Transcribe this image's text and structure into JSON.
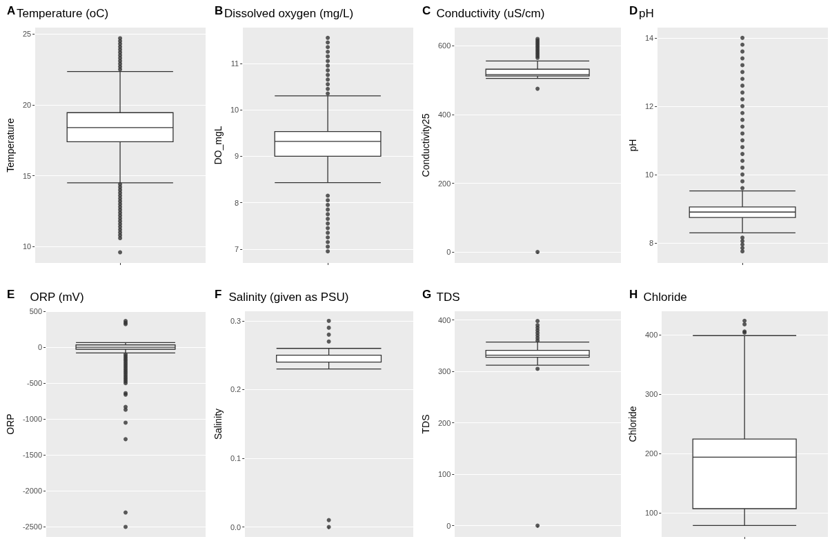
{
  "chart_data": [
    {
      "type": "box",
      "title": "Temperature (oC)",
      "ylabel": "Temperature",
      "annotations": [
        "A"
      ],
      "categories": [
        null
      ],
      "ylim": [
        8.85,
        25.45
      ],
      "yticks": [
        10,
        15,
        20,
        25
      ],
      "grid": true,
      "boxes": [
        {
          "low": 14.5,
          "q1": 17.4,
          "median": 18.4,
          "q3": 19.45,
          "high": 22.35,
          "outliers": [
            22.5,
            22.7,
            22.9,
            23.1,
            23.3,
            23.5,
            23.7,
            23.9,
            24.1,
            24.3,
            24.5,
            24.7,
            14.4,
            14.2,
            14.0,
            13.8,
            13.6,
            13.4,
            13.2,
            13.0,
            12.8,
            12.6,
            12.4,
            12.2,
            12.0,
            11.8,
            11.6,
            11.4,
            11.2,
            11.0,
            10.8,
            10.6,
            9.6
          ]
        }
      ]
    },
    {
      "type": "box",
      "title": "Dissolved oxygen (mg/L)",
      "ylabel": "DO_mgL",
      "annotations": [
        "B"
      ],
      "categories": [
        null
      ],
      "ylim": [
        6.7,
        11.77
      ],
      "yticks": [
        7,
        8,
        9,
        10,
        11
      ],
      "grid": true,
      "boxes": [
        {
          "low": 8.43,
          "q1": 9.0,
          "median": 9.32,
          "q3": 9.53,
          "high": 10.3,
          "outliers": [
            10.35,
            10.45,
            10.55,
            10.65,
            10.75,
            10.85,
            10.95,
            11.05,
            11.15,
            11.25,
            11.35,
            11.45,
            11.55,
            8.15,
            8.05,
            7.95,
            7.85,
            7.75,
            7.65,
            7.55,
            7.45,
            7.35,
            7.25,
            7.15,
            7.05,
            6.95
          ]
        }
      ]
    },
    {
      "type": "box",
      "title": "Conductivity (uS/cm)",
      "ylabel": "Conductivity25",
      "annotations": [
        "C"
      ],
      "categories": [
        null
      ],
      "ylim": [
        -32,
        653
      ],
      "yticks": [
        0,
        200,
        400,
        600
      ],
      "grid": true,
      "boxes": [
        {
          "low": 505,
          "q1": 512,
          "median": 516,
          "q3": 532,
          "high": 556,
          "outliers": [
            565,
            570,
            575,
            580,
            585,
            590,
            595,
            600,
            605,
            610,
            615,
            620,
            475,
            0
          ]
        }
      ]
    },
    {
      "type": "box",
      "title": "pH",
      "ylabel": "pH",
      "annotations": [
        "D"
      ],
      "categories": [
        null
      ],
      "ylim": [
        7.41,
        14.3
      ],
      "yticks": [
        8,
        10,
        12,
        14
      ],
      "grid": true,
      "boxes": [
        {
          "low": 8.29,
          "q1": 8.74,
          "median": 8.9,
          "q3": 9.05,
          "high": 9.52,
          "outliers": [
            9.6,
            9.8,
            10.0,
            10.2,
            10.4,
            10.6,
            10.8,
            11.0,
            11.2,
            11.4,
            11.6,
            11.8,
            12.0,
            12.2,
            12.4,
            12.6,
            12.8,
            13.0,
            13.2,
            13.4,
            13.6,
            13.8,
            14.0,
            8.15,
            8.05,
            7.95,
            7.85,
            7.75
          ]
        }
      ]
    },
    {
      "type": "box",
      "title": "ORP (mV)",
      "ylabel": "ORP",
      "annotations": [
        "E"
      ],
      "categories": [
        null
      ],
      "ylim": [
        -2640,
        500
      ],
      "yticks": [
        -2500,
        -2000,
        -1500,
        -1000,
        -500,
        0,
        500
      ],
      "grid": true,
      "boxes": [
        {
          "low": -80,
          "q1": -28,
          "median": 0,
          "q3": 32,
          "high": 64,
          "outliers": [
            365,
            340,
            320,
            -100,
            -125,
            -150,
            -175,
            -200,
            -225,
            -250,
            -275,
            -300,
            -325,
            -350,
            -375,
            -400,
            -425,
            -450,
            -475,
            -500,
            -640,
            -660,
            -830,
            -870,
            -1050,
            -1280,
            -2300,
            -2500
          ]
        }
      ]
    },
    {
      "type": "box",
      "title": "Salinity (given as PSU)",
      "ylabel": "Salinity",
      "annotations": [
        "F"
      ],
      "categories": [
        null
      ],
      "ylim": [
        -0.0145,
        0.314
      ],
      "yticks": [
        {
          "value": 0,
          "label": "0.0"
        },
        0.1,
        0.2,
        0.3
      ],
      "grid": true,
      "boxes": [
        {
          "low": 0.23,
          "q1": 0.24,
          "median": 0.25,
          "q3": 0.25,
          "high": 0.26,
          "outliers": [
            0.3,
            0.29,
            0.28,
            0.27,
            0.01,
            0
          ]
        }
      ]
    },
    {
      "type": "box",
      "title": "TDS",
      "ylabel": "TDS",
      "annotations": [
        "G"
      ],
      "categories": [
        null
      ],
      "ylim": [
        -22,
        417
      ],
      "yticks": [
        0,
        100,
        200,
        300,
        400
      ],
      "grid": true,
      "boxes": [
        {
          "low": 312,
          "q1": 327.6,
          "median": 331.6,
          "q3": 341,
          "high": 357,
          "outliers": [
            360,
            365,
            370,
            375,
            380,
            385,
            390,
            398,
            305,
            0
          ]
        }
      ]
    },
    {
      "type": "box",
      "title": "Chloride",
      "ylabel": "Chloride",
      "annotations": [
        "H"
      ],
      "categories": [
        null
      ],
      "ylim": [
        59.6,
        440
      ],
      "yticks": [
        100,
        200,
        300,
        400
      ],
      "grid": true,
      "boxes": [
        {
          "low": 79,
          "q1": 107.3,
          "median": 194.2,
          "q3": 224.7,
          "high": 399,
          "outliers": [
            424,
            418,
            406,
            404
          ]
        }
      ]
    }
  ]
}
